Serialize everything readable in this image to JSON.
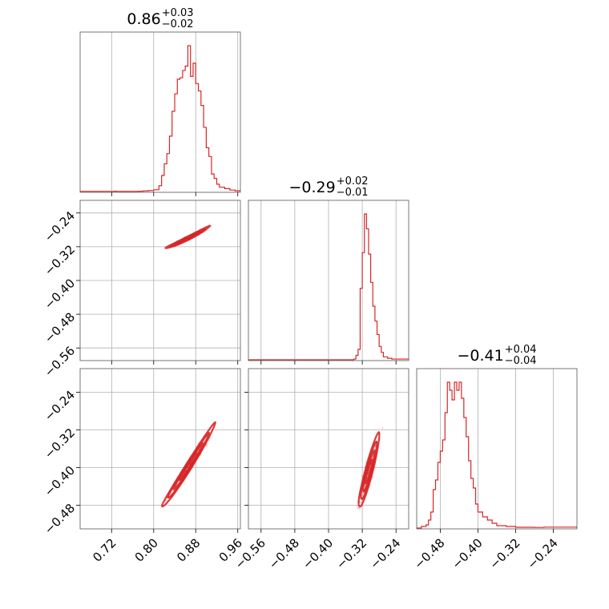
{
  "chart_data": {
    "type": "corner",
    "colors": {
      "series": "#d62728",
      "grid": "#b0b0b0",
      "frame": "#555555"
    },
    "grid": true,
    "parameters": [
      {
        "title_value": "0.86",
        "title_plus": "+0.03",
        "title_minus": "−0.02",
        "range": [
          0.66,
          0.965
        ]
      },
      {
        "title_value": "−0.29",
        "title_plus": "+0.02",
        "title_minus": "−0.01",
        "range": [
          -0.59,
          -0.21
        ]
      },
      {
        "title_value": "−0.41",
        "title_plus": "+0.04",
        "title_minus": "−0.04",
        "range": [
          -0.53,
          -0.19
        ]
      }
    ],
    "ticks": {
      "x0": [
        {
          "v": 0.72,
          "label": "0.72"
        },
        {
          "v": 0.8,
          "label": "0.80"
        },
        {
          "v": 0.88,
          "label": "0.88"
        },
        {
          "v": 0.96,
          "label": "0.96"
        }
      ],
      "x1": [
        {
          "v": -0.56,
          "label": "−0.56"
        },
        {
          "v": -0.48,
          "label": "−0.48"
        },
        {
          "v": -0.4,
          "label": "−0.40"
        },
        {
          "v": -0.32,
          "label": "−0.32"
        },
        {
          "v": -0.24,
          "label": "−0.24"
        }
      ],
      "x2": [
        {
          "v": -0.48,
          "label": "−0.48"
        },
        {
          "v": -0.4,
          "label": "−0.40"
        },
        {
          "v": -0.32,
          "label": "−0.32"
        },
        {
          "v": -0.24,
          "label": "−0.24"
        }
      ],
      "y1": [
        {
          "v": -0.24,
          "label": "−0.24"
        },
        {
          "v": -0.32,
          "label": "−0.32"
        },
        {
          "v": -0.4,
          "label": "−0.40"
        },
        {
          "v": -0.48,
          "label": "−0.48"
        },
        {
          "v": -0.56,
          "label": "−0.56"
        }
      ],
      "y2": [
        {
          "v": -0.24,
          "label": "−0.24"
        },
        {
          "v": -0.32,
          "label": "−0.32"
        },
        {
          "v": -0.4,
          "label": "−0.40"
        },
        {
          "v": -0.48,
          "label": "−0.48"
        }
      ]
    },
    "histograms": [
      {
        "parameter": 0,
        "bins": [
          [
            0.66,
            0.001
          ],
          [
            0.725,
            0.002
          ],
          [
            0.73,
            0.001
          ],
          [
            0.77,
            0.002
          ],
          [
            0.78,
            0.004
          ],
          [
            0.79,
            0.006
          ],
          [
            0.8,
            0.012
          ],
          [
            0.81,
            0.04
          ],
          [
            0.815,
            0.11
          ],
          [
            0.82,
            0.19
          ],
          [
            0.825,
            0.26
          ],
          [
            0.83,
            0.38
          ],
          [
            0.835,
            0.55
          ],
          [
            0.84,
            0.67
          ],
          [
            0.845,
            0.77
          ],
          [
            0.85,
            0.78
          ],
          [
            0.855,
            0.83
          ],
          [
            0.86,
            0.86
          ],
          [
            0.865,
            1.0
          ],
          [
            0.87,
            0.79
          ],
          [
            0.875,
            0.88
          ],
          [
            0.88,
            0.74
          ],
          [
            0.885,
            0.69
          ],
          [
            0.89,
            0.59
          ],
          [
            0.895,
            0.44
          ],
          [
            0.9,
            0.3
          ],
          [
            0.905,
            0.24
          ],
          [
            0.91,
            0.12
          ],
          [
            0.915,
            0.09
          ],
          [
            0.92,
            0.05
          ],
          [
            0.925,
            0.03
          ],
          [
            0.935,
            0.02
          ],
          [
            0.945,
            0.01
          ],
          [
            0.955,
            0.005
          ]
        ]
      },
      {
        "parameter": 1,
        "bins": [
          [
            -0.58,
            0.0
          ],
          [
            -0.34,
            0.005
          ],
          [
            -0.335,
            0.03
          ],
          [
            -0.33,
            0.07
          ],
          [
            -0.325,
            0.48
          ],
          [
            -0.32,
            0.72
          ],
          [
            -0.315,
            0.98
          ],
          [
            -0.31,
            0.88
          ],
          [
            -0.305,
            0.71
          ],
          [
            -0.3,
            0.52
          ],
          [
            -0.295,
            0.36
          ],
          [
            -0.29,
            0.26
          ],
          [
            -0.285,
            0.17
          ],
          [
            -0.28,
            0.09
          ],
          [
            -0.275,
            0.05
          ],
          [
            -0.27,
            0.02
          ],
          [
            -0.26,
            0.01
          ],
          [
            -0.25,
            0.005
          ]
        ]
      },
      {
        "parameter": 2,
        "bins": [
          [
            -0.53,
            0.0
          ],
          [
            -0.52,
            0.01
          ],
          [
            -0.51,
            0.02
          ],
          [
            -0.505,
            0.05
          ],
          [
            -0.5,
            0.1
          ],
          [
            -0.495,
            0.24
          ],
          [
            -0.49,
            0.3
          ],
          [
            -0.485,
            0.41
          ],
          [
            -0.48,
            0.48
          ],
          [
            -0.475,
            0.55
          ],
          [
            -0.47,
            0.72
          ],
          [
            -0.465,
            0.91
          ],
          [
            -0.46,
            0.86
          ],
          [
            -0.455,
            0.8
          ],
          [
            -0.45,
            0.91
          ],
          [
            -0.445,
            0.86
          ],
          [
            -0.44,
            0.91
          ],
          [
            -0.435,
            0.81
          ],
          [
            -0.43,
            0.69
          ],
          [
            -0.425,
            0.57
          ],
          [
            -0.42,
            0.42
          ],
          [
            -0.415,
            0.31
          ],
          [
            -0.41,
            0.25
          ],
          [
            -0.405,
            0.15
          ],
          [
            -0.4,
            0.1
          ],
          [
            -0.39,
            0.07
          ],
          [
            -0.38,
            0.05
          ],
          [
            -0.37,
            0.03
          ],
          [
            -0.36,
            0.015
          ],
          [
            -0.34,
            0.01
          ],
          [
            -0.32,
            0.005
          ],
          [
            -0.28,
            0.004
          ],
          [
            -0.26,
            0.006
          ]
        ]
      }
    ],
    "scatter": [
      {
        "x_param": 0,
        "y_param": 1,
        "center": [
          0.865,
          -0.3
        ],
        "along": [
          0.04,
          0.025
        ],
        "across": [
          -0.0015,
          0.0025
        ]
      },
      {
        "x_param": 0,
        "y_param": 2,
        "center": [
          0.865,
          -0.4
        ],
        "along": [
          0.048,
          0.085
        ],
        "across": [
          -0.004,
          0.0025
        ]
      },
      {
        "x_param": 1,
        "y_param": 2,
        "center": [
          -0.305,
          -0.41
        ],
        "along": [
          0.022,
          0.075
        ],
        "across": [
          -0.0065,
          0.002
        ]
      }
    ]
  }
}
